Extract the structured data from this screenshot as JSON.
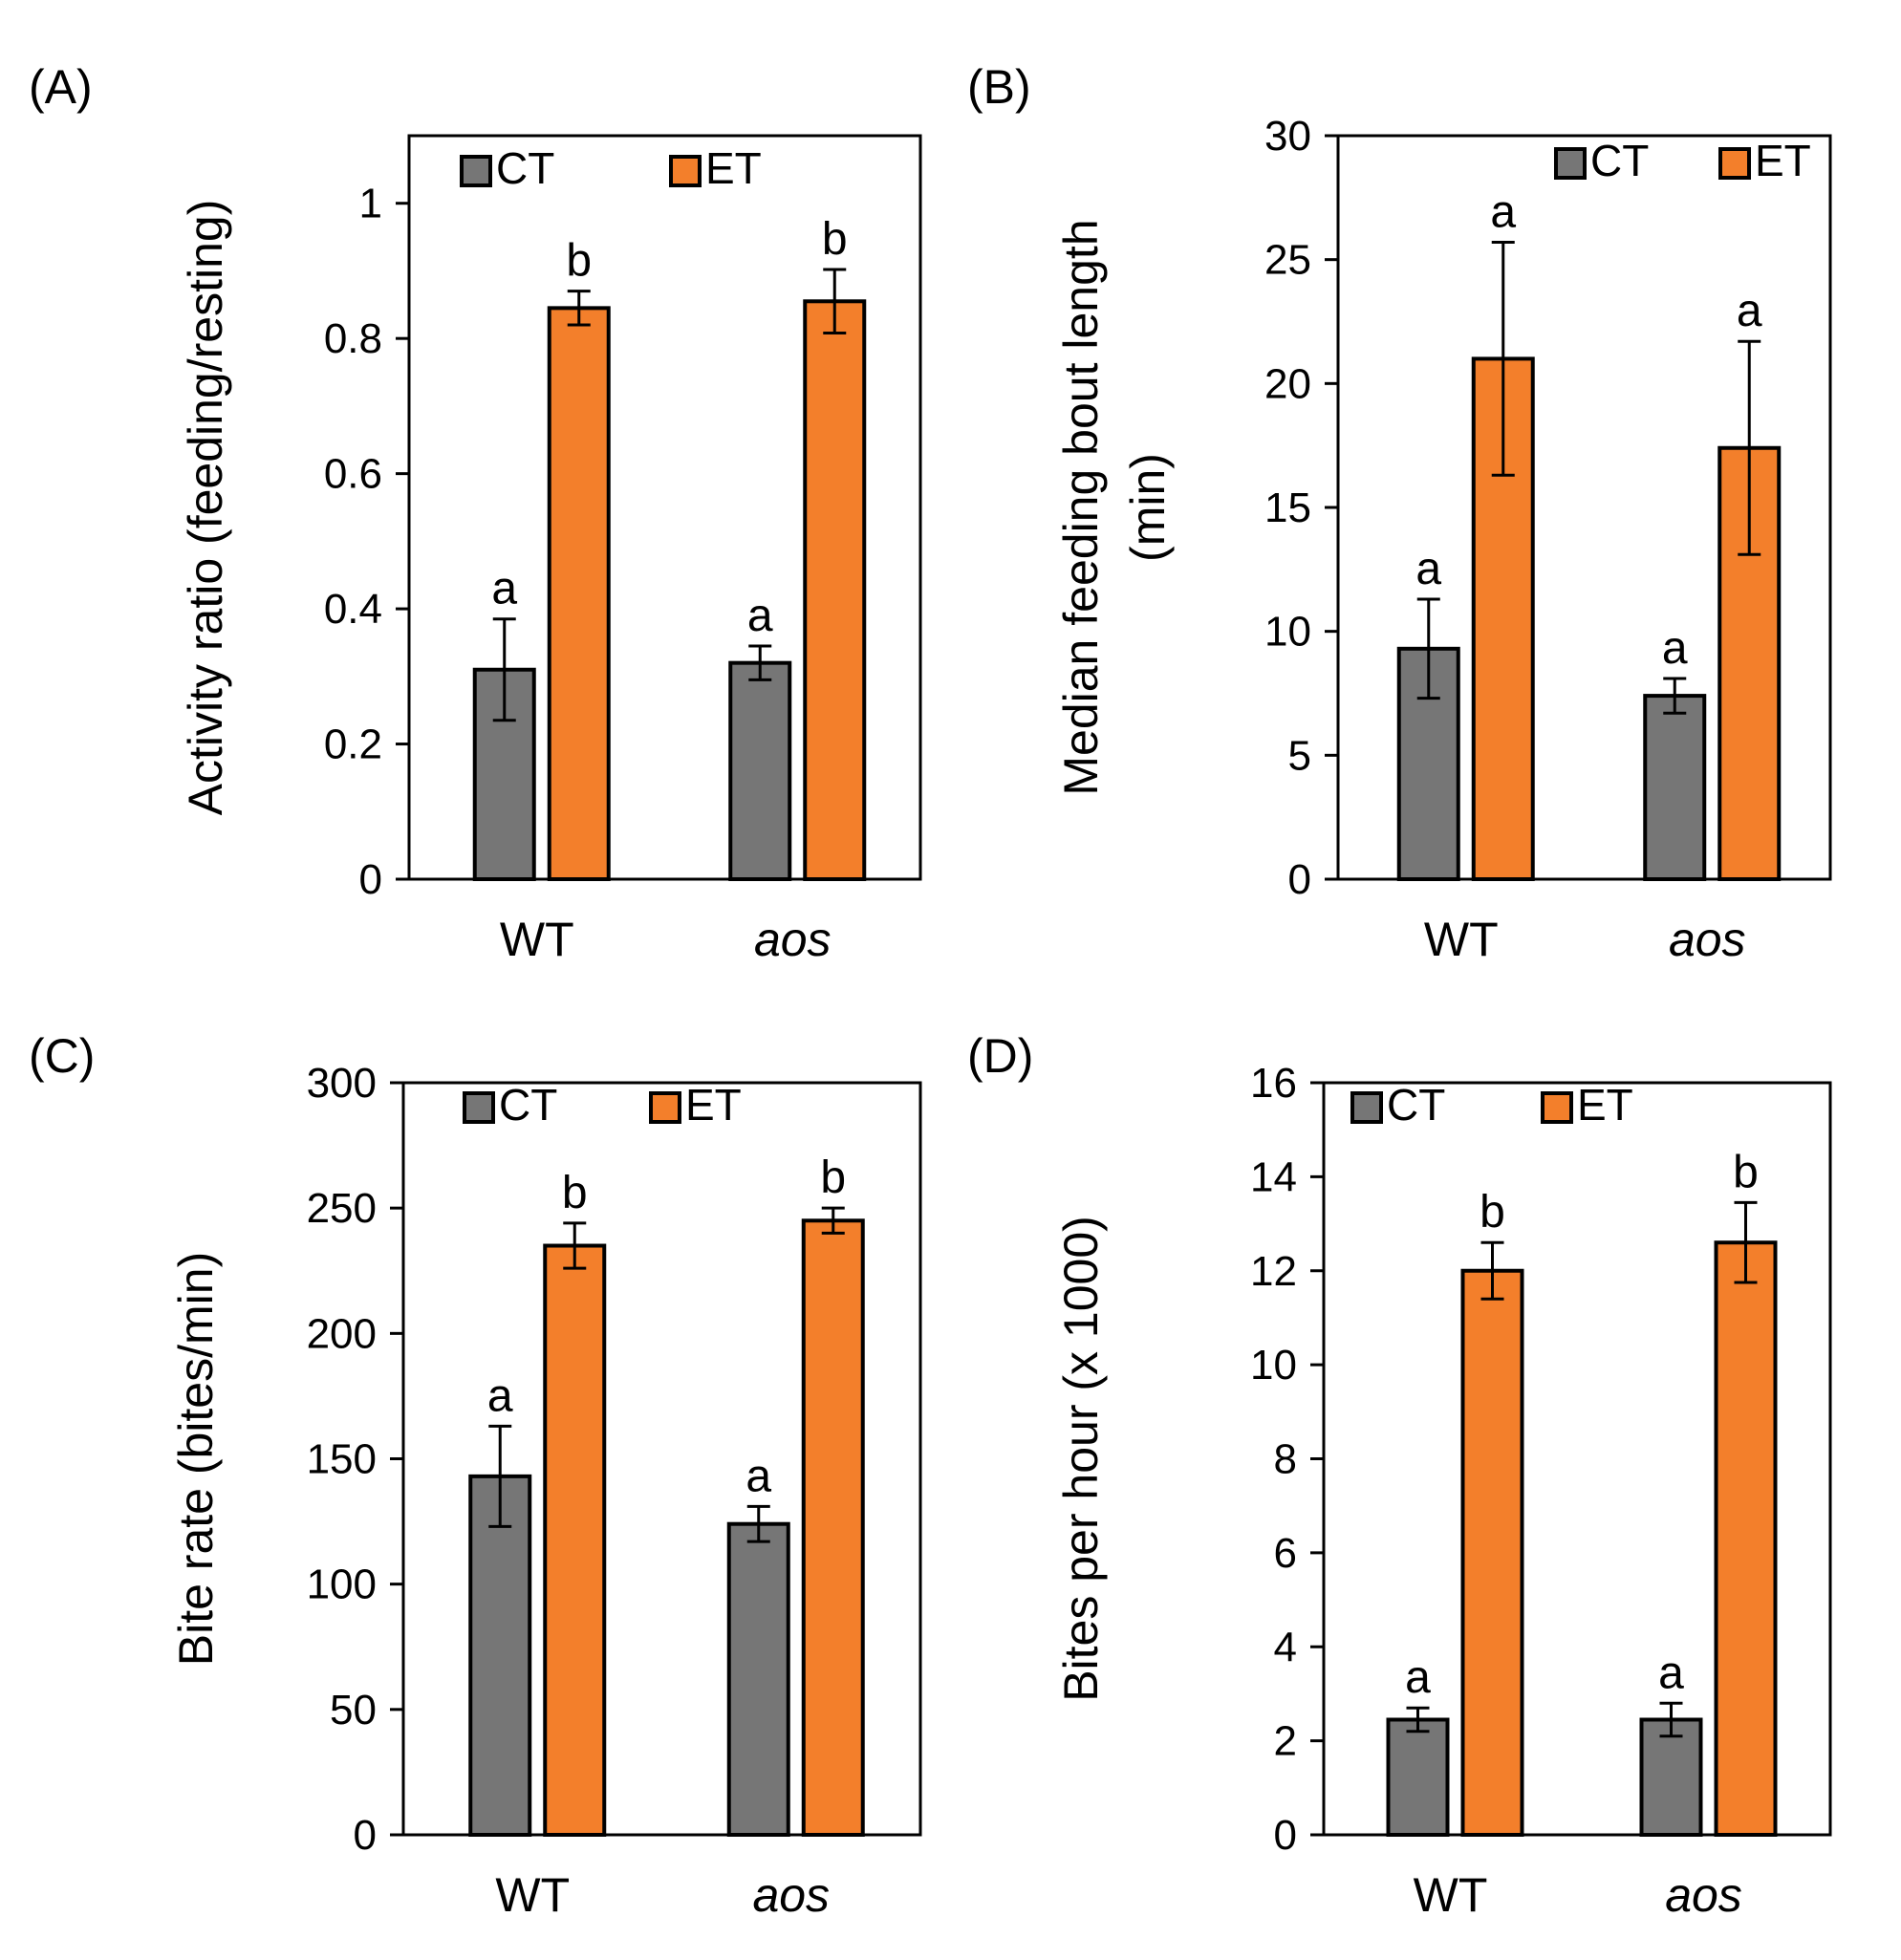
{
  "figure": {
    "colors": {
      "CT": "#767676",
      "ET": "#f37f2b",
      "outline": "#000000"
    },
    "panels": [
      {
        "id": "A",
        "label": "(A)",
        "legend_position": "top-left"
      },
      {
        "id": "B",
        "label": "(B)",
        "legend_position": "top-right"
      },
      {
        "id": "C",
        "label": "(C)",
        "legend_position": "top-left"
      },
      {
        "id": "D",
        "label": "(D)",
        "legend_position": "top-left"
      }
    ]
  },
  "chart_data": [
    {
      "panel": "(A)",
      "type": "bar",
      "categories": [
        "WT",
        "aos"
      ],
      "category_italic": [
        false,
        true
      ],
      "ylabel": "Activity ratio (feeding/resting)",
      "ylim": [
        0,
        1.1
      ],
      "yticks": [
        0,
        0.2,
        0.4,
        0.6,
        0.8,
        1
      ],
      "ytick_labels": [
        "0",
        "0.2",
        "0.4",
        "0.6",
        "0.8",
        "1"
      ],
      "legend": [
        "CT",
        "ET"
      ],
      "series": [
        {
          "name": "CT",
          "values": [
            0.31,
            0.32
          ],
          "errors": [
            0.075,
            0.025
          ],
          "letters": [
            "a",
            "a"
          ]
        },
        {
          "name": "ET",
          "values": [
            0.845,
            0.855
          ],
          "errors": [
            0.025,
            0.047
          ],
          "letters": [
            "b",
            "b"
          ]
        }
      ]
    },
    {
      "panel": "(B)",
      "type": "bar",
      "categories": [
        "WT",
        "aos"
      ],
      "category_italic": [
        false,
        true
      ],
      "ylabel": "Median feeding bout length",
      "ylabel_line2": "(min)",
      "ylim": [
        0,
        30
      ],
      "yticks": [
        0,
        5,
        10,
        15,
        20,
        25,
        30
      ],
      "ytick_labels": [
        "0",
        "5",
        "10",
        "15",
        "20",
        "25",
        "30"
      ],
      "legend": [
        "CT",
        "ET"
      ],
      "series": [
        {
          "name": "CT",
          "values": [
            9.3,
            7.4
          ],
          "errors": [
            2.0,
            0.7
          ],
          "letters": [
            "a",
            "a"
          ]
        },
        {
          "name": "ET",
          "values": [
            21.0,
            17.4
          ],
          "errors": [
            4.7,
            4.3
          ],
          "letters": [
            "a",
            "a"
          ]
        }
      ]
    },
    {
      "panel": "(C)",
      "type": "bar",
      "categories": [
        "WT",
        "aos"
      ],
      "category_italic": [
        false,
        true
      ],
      "ylabel": "Bite rate (bites/min)",
      "ylim": [
        0,
        300
      ],
      "yticks": [
        0,
        50,
        100,
        150,
        200,
        250,
        300
      ],
      "ytick_labels": [
        "0",
        "50",
        "100",
        "150",
        "200",
        "250",
        "300"
      ],
      "legend": [
        "CT",
        "ET"
      ],
      "series": [
        {
          "name": "CT",
          "values": [
            143,
            124
          ],
          "errors": [
            20,
            7
          ],
          "letters": [
            "a",
            "a"
          ]
        },
        {
          "name": "ET",
          "values": [
            235,
            245
          ],
          "errors": [
            9,
            5
          ],
          "letters": [
            "b",
            "b"
          ]
        }
      ]
    },
    {
      "panel": "(D)",
      "type": "bar",
      "categories": [
        "WT",
        "aos"
      ],
      "category_italic": [
        false,
        true
      ],
      "ylabel": "Bites per hour (x 1000)",
      "ylim": [
        0,
        16
      ],
      "yticks": [
        0,
        2,
        4,
        6,
        8,
        10,
        12,
        14,
        16
      ],
      "ytick_labels": [
        "0",
        "2",
        "4",
        "6",
        "8",
        "10",
        "12",
        "14",
        "16"
      ],
      "legend": [
        "CT",
        "ET"
      ],
      "series": [
        {
          "name": "CT",
          "values": [
            2.45,
            2.45
          ],
          "errors": [
            0.25,
            0.35
          ],
          "letters": [
            "a",
            "a"
          ]
        },
        {
          "name": "ET",
          "values": [
            12.0,
            12.6
          ],
          "errors": [
            0.6,
            0.85
          ],
          "letters": [
            "b",
            "b"
          ]
        }
      ]
    }
  ]
}
